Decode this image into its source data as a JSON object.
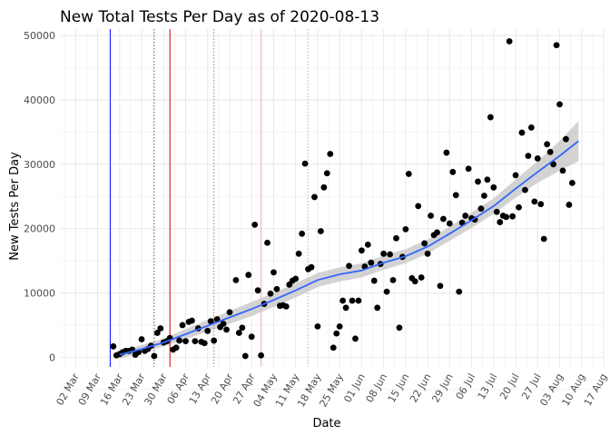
{
  "chart_data": {
    "type": "scatter",
    "title": "New Total Tests Per Day as of 2020-08-13",
    "xlabel": "Date",
    "ylabel": "New Tests Per Day",
    "x_axis": "date",
    "xlim": [
      "2020-02-26",
      "2020-08-17"
    ],
    "ylim": [
      -1500,
      51000
    ],
    "x_ticks": [
      "02 Mar",
      "09 Mar",
      "16 Mar",
      "23 Mar",
      "30 Mar",
      "06 Apr",
      "13 Apr",
      "20 Apr",
      "27 Apr",
      "04 May",
      "11 May",
      "18 May",
      "25 May",
      "01 Jun",
      "08 Jun",
      "15 Jun",
      "22 Jun",
      "29 Jun",
      "06 Jul",
      "13 Jul",
      "20 Jul",
      "27 Jul",
      "03 Aug",
      "10 Aug",
      "17 Aug"
    ],
    "x_tick_dates": [
      "2020-03-02",
      "2020-03-09",
      "2020-03-16",
      "2020-03-23",
      "2020-03-30",
      "2020-04-06",
      "2020-04-13",
      "2020-04-20",
      "2020-04-27",
      "2020-05-04",
      "2020-05-11",
      "2020-05-18",
      "2020-05-25",
      "2020-06-01",
      "2020-06-08",
      "2020-06-15",
      "2020-06-22",
      "2020-06-29",
      "2020-07-06",
      "2020-07-13",
      "2020-07-20",
      "2020-07-27",
      "2020-08-03",
      "2020-08-10",
      "2020-08-17"
    ],
    "y_ticks": [
      0,
      10000,
      20000,
      30000,
      40000,
      50000
    ],
    "grid": true,
    "colors": {
      "points": "#000000",
      "trend": "#3366FF",
      "band": "#C8C8C8",
      "grid": "#EBEBEB",
      "vline_blue": "#0000FF",
      "vline_red": "#CC0000",
      "vline_dotted_dark": "#555555",
      "vline_dotted_red": "#CC6666",
      "vline_light_red": "#E8B0B0",
      "vline_dotted_grey": "#BBBBBB"
    },
    "vlines": [
      {
        "date": "2020-03-13",
        "style": "solid",
        "color": "vline_blue"
      },
      {
        "date": "2020-03-27",
        "style": "dotted",
        "color": "vline_dotted_dark"
      },
      {
        "date": "2020-04-01",
        "style": "solid",
        "color": "vline_red"
      },
      {
        "date": "2020-04-15",
        "style": "dotted",
        "color": "vline_dotted_red"
      },
      {
        "date": "2020-04-30",
        "style": "solid",
        "color": "vline_light_red"
      },
      {
        "date": "2020-05-15",
        "style": "dotted",
        "color": "vline_dotted_grey"
      }
    ],
    "points": [
      {
        "x": "2020-03-14",
        "y": 1700
      },
      {
        "x": "2020-03-15",
        "y": 300
      },
      {
        "x": "2020-03-16",
        "y": 500
      },
      {
        "x": "2020-03-17",
        "y": 800
      },
      {
        "x": "2020-03-18",
        "y": 1000
      },
      {
        "x": "2020-03-19",
        "y": 1000
      },
      {
        "x": "2020-03-20",
        "y": 1200
      },
      {
        "x": "2020-03-21",
        "y": 400
      },
      {
        "x": "2020-03-22",
        "y": 800
      },
      {
        "x": "2020-03-23",
        "y": 2800
      },
      {
        "x": "2020-03-24",
        "y": 1000
      },
      {
        "x": "2020-03-25",
        "y": 1300
      },
      {
        "x": "2020-03-26",
        "y": 1800
      },
      {
        "x": "2020-03-27",
        "y": 200
      },
      {
        "x": "2020-03-28",
        "y": 3800
      },
      {
        "x": "2020-03-29",
        "y": 4500
      },
      {
        "x": "2020-03-30",
        "y": 2300
      },
      {
        "x": "2020-03-31",
        "y": 2500
      },
      {
        "x": "2020-04-01",
        "y": 3000
      },
      {
        "x": "2020-04-02",
        "y": 1200
      },
      {
        "x": "2020-04-03",
        "y": 1500
      },
      {
        "x": "2020-04-04",
        "y": 2600
      },
      {
        "x": "2020-04-05",
        "y": 5000
      },
      {
        "x": "2020-04-06",
        "y": 2500
      },
      {
        "x": "2020-04-07",
        "y": 5500
      },
      {
        "x": "2020-04-08",
        "y": 5700
      },
      {
        "x": "2020-04-09",
        "y": 2500
      },
      {
        "x": "2020-04-10",
        "y": 4500
      },
      {
        "x": "2020-04-11",
        "y": 2400
      },
      {
        "x": "2020-04-12",
        "y": 2200
      },
      {
        "x": "2020-04-13",
        "y": 4100
      },
      {
        "x": "2020-04-14",
        "y": 5600
      },
      {
        "x": "2020-04-15",
        "y": 2600
      },
      {
        "x": "2020-04-16",
        "y": 5900
      },
      {
        "x": "2020-04-17",
        "y": 4700
      },
      {
        "x": "2020-04-18",
        "y": 5200
      },
      {
        "x": "2020-04-19",
        "y": 4300
      },
      {
        "x": "2020-04-20",
        "y": 7000
      },
      {
        "x": "2020-04-22",
        "y": 12000
      },
      {
        "x": "2020-04-23",
        "y": 3800
      },
      {
        "x": "2020-04-24",
        "y": 4600
      },
      {
        "x": "2020-04-25",
        "y": 200
      },
      {
        "x": "2020-04-26",
        "y": 12800
      },
      {
        "x": "2020-04-27",
        "y": 3200
      },
      {
        "x": "2020-04-28",
        "y": 20600
      },
      {
        "x": "2020-04-29",
        "y": 10400
      },
      {
        "x": "2020-04-30",
        "y": 300
      },
      {
        "x": "2020-05-01",
        "y": 8300
      },
      {
        "x": "2020-05-02",
        "y": 17800
      },
      {
        "x": "2020-05-03",
        "y": 9900
      },
      {
        "x": "2020-05-04",
        "y": 13200
      },
      {
        "x": "2020-05-05",
        "y": 10600
      },
      {
        "x": "2020-05-06",
        "y": 8000
      },
      {
        "x": "2020-05-07",
        "y": 8100
      },
      {
        "x": "2020-05-08",
        "y": 7900
      },
      {
        "x": "2020-05-09",
        "y": 11300
      },
      {
        "x": "2020-05-10",
        "y": 11900
      },
      {
        "x": "2020-05-11",
        "y": 12200
      },
      {
        "x": "2020-05-12",
        "y": 16100
      },
      {
        "x": "2020-05-13",
        "y": 19200
      },
      {
        "x": "2020-05-14",
        "y": 30100
      },
      {
        "x": "2020-05-15",
        "y": 13700
      },
      {
        "x": "2020-05-16",
        "y": 14000
      },
      {
        "x": "2020-05-17",
        "y": 24900
      },
      {
        "x": "2020-05-18",
        "y": 4800
      },
      {
        "x": "2020-05-19",
        "y": 19600
      },
      {
        "x": "2020-05-20",
        "y": 26400
      },
      {
        "x": "2020-05-21",
        "y": 28600
      },
      {
        "x": "2020-05-22",
        "y": 31600
      },
      {
        "x": "2020-05-23",
        "y": 1500
      },
      {
        "x": "2020-05-24",
        "y": 3700
      },
      {
        "x": "2020-05-25",
        "y": 4800
      },
      {
        "x": "2020-05-26",
        "y": 8800
      },
      {
        "x": "2020-05-27",
        "y": 7700
      },
      {
        "x": "2020-05-28",
        "y": 14200
      },
      {
        "x": "2020-05-29",
        "y": 8800
      },
      {
        "x": "2020-05-30",
        "y": 2900
      },
      {
        "x": "2020-05-31",
        "y": 8800
      },
      {
        "x": "2020-06-01",
        "y": 16600
      },
      {
        "x": "2020-06-02",
        "y": 14100
      },
      {
        "x": "2020-06-03",
        "y": 17500
      },
      {
        "x": "2020-06-04",
        "y": 14700
      },
      {
        "x": "2020-06-05",
        "y": 11900
      },
      {
        "x": "2020-06-06",
        "y": 7700
      },
      {
        "x": "2020-06-07",
        "y": 14500
      },
      {
        "x": "2020-06-08",
        "y": 16100
      },
      {
        "x": "2020-06-09",
        "y": 10200
      },
      {
        "x": "2020-06-10",
        "y": 16000
      },
      {
        "x": "2020-06-11",
        "y": 12000
      },
      {
        "x": "2020-06-12",
        "y": 18500
      },
      {
        "x": "2020-06-13",
        "y": 4600
      },
      {
        "x": "2020-06-14",
        "y": 15600
      },
      {
        "x": "2020-06-15",
        "y": 19900
      },
      {
        "x": "2020-06-16",
        "y": 28500
      },
      {
        "x": "2020-06-17",
        "y": 12300
      },
      {
        "x": "2020-06-18",
        "y": 11800
      },
      {
        "x": "2020-06-19",
        "y": 23500
      },
      {
        "x": "2020-06-20",
        "y": 12400
      },
      {
        "x": "2020-06-21",
        "y": 17700
      },
      {
        "x": "2020-06-22",
        "y": 16100
      },
      {
        "x": "2020-06-23",
        "y": 22000
      },
      {
        "x": "2020-06-24",
        "y": 19000
      },
      {
        "x": "2020-06-25",
        "y": 19400
      },
      {
        "x": "2020-06-26",
        "y": 11100
      },
      {
        "x": "2020-06-27",
        "y": 21500
      },
      {
        "x": "2020-06-28",
        "y": 31800
      },
      {
        "x": "2020-06-29",
        "y": 20800
      },
      {
        "x": "2020-06-30",
        "y": 28800
      },
      {
        "x": "2020-07-01",
        "y": 25200
      },
      {
        "x": "2020-07-02",
        "y": 10200
      },
      {
        "x": "2020-07-03",
        "y": 20900
      },
      {
        "x": "2020-07-04",
        "y": 22000
      },
      {
        "x": "2020-07-05",
        "y": 29300
      },
      {
        "x": "2020-07-06",
        "y": 21600
      },
      {
        "x": "2020-07-07",
        "y": 21400
      },
      {
        "x": "2020-07-08",
        "y": 27300
      },
      {
        "x": "2020-07-09",
        "y": 23100
      },
      {
        "x": "2020-07-10",
        "y": 25100
      },
      {
        "x": "2020-07-11",
        "y": 27600
      },
      {
        "x": "2020-07-12",
        "y": 37300
      },
      {
        "x": "2020-07-13",
        "y": 26400
      },
      {
        "x": "2020-07-14",
        "y": 22600
      },
      {
        "x": "2020-07-15",
        "y": 21000
      },
      {
        "x": "2020-07-16",
        "y": 22000
      },
      {
        "x": "2020-07-17",
        "y": 21800
      },
      {
        "x": "2020-07-18",
        "y": 49100
      },
      {
        "x": "2020-07-19",
        "y": 21900
      },
      {
        "x": "2020-07-20",
        "y": 28300
      },
      {
        "x": "2020-07-21",
        "y": 23300
      },
      {
        "x": "2020-07-22",
        "y": 34900
      },
      {
        "x": "2020-07-23",
        "y": 26000
      },
      {
        "x": "2020-07-24",
        "y": 31300
      },
      {
        "x": "2020-07-25",
        "y": 35700
      },
      {
        "x": "2020-07-26",
        "y": 24200
      },
      {
        "x": "2020-07-27",
        "y": 30900
      },
      {
        "x": "2020-07-28",
        "y": 23800
      },
      {
        "x": "2020-07-29",
        "y": 18400
      },
      {
        "x": "2020-07-30",
        "y": 33100
      },
      {
        "x": "2020-07-31",
        "y": 31900
      },
      {
        "x": "2020-08-01",
        "y": 30000
      },
      {
        "x": "2020-08-02",
        "y": 48500
      },
      {
        "x": "2020-08-03",
        "y": 39300
      },
      {
        "x": "2020-08-04",
        "y": 29000
      },
      {
        "x": "2020-08-05",
        "y": 33900
      },
      {
        "x": "2020-08-06",
        "y": 23700
      },
      {
        "x": "2020-08-07",
        "y": 27100
      }
    ],
    "trend": [
      {
        "x": "2020-03-16",
        "y": 400,
        "lo": -200,
        "hi": 1000
      },
      {
        "x": "2020-03-23",
        "y": 1300,
        "lo": 700,
        "hi": 1900
      },
      {
        "x": "2020-03-30",
        "y": 2300,
        "lo": 1700,
        "hi": 2900
      },
      {
        "x": "2020-04-06",
        "y": 3600,
        "lo": 2800,
        "hi": 4400
      },
      {
        "x": "2020-04-13",
        "y": 4900,
        "lo": 4000,
        "hi": 5800
      },
      {
        "x": "2020-04-20",
        "y": 6200,
        "lo": 5200,
        "hi": 7200
      },
      {
        "x": "2020-04-27",
        "y": 7500,
        "lo": 6400,
        "hi": 8600
      },
      {
        "x": "2020-05-04",
        "y": 8900,
        "lo": 7800,
        "hi": 10000
      },
      {
        "x": "2020-05-11",
        "y": 10400,
        "lo": 9300,
        "hi": 11500
      },
      {
        "x": "2020-05-18",
        "y": 12000,
        "lo": 10900,
        "hi": 13100
      },
      {
        "x": "2020-05-25",
        "y": 12900,
        "lo": 11800,
        "hi": 14000
      },
      {
        "x": "2020-06-01",
        "y": 13500,
        "lo": 12400,
        "hi": 14600
      },
      {
        "x": "2020-06-08",
        "y": 14700,
        "lo": 13600,
        "hi": 15800
      },
      {
        "x": "2020-06-15",
        "y": 15700,
        "lo": 14600,
        "hi": 16800
      },
      {
        "x": "2020-06-22",
        "y": 17200,
        "lo": 16100,
        "hi": 18300
      },
      {
        "x": "2020-06-29",
        "y": 19200,
        "lo": 18100,
        "hi": 20300
      },
      {
        "x": "2020-07-06",
        "y": 21300,
        "lo": 20100,
        "hi": 22500
      },
      {
        "x": "2020-07-13",
        "y": 23500,
        "lo": 22300,
        "hi": 24700
      },
      {
        "x": "2020-07-20",
        "y": 26200,
        "lo": 24800,
        "hi": 27600
      },
      {
        "x": "2020-07-27",
        "y": 28800,
        "lo": 27100,
        "hi": 30500
      },
      {
        "x": "2020-08-03",
        "y": 31300,
        "lo": 29000,
        "hi": 33600
      },
      {
        "x": "2020-08-09",
        "y": 33600,
        "lo": 30500,
        "hi": 36700
      }
    ]
  }
}
